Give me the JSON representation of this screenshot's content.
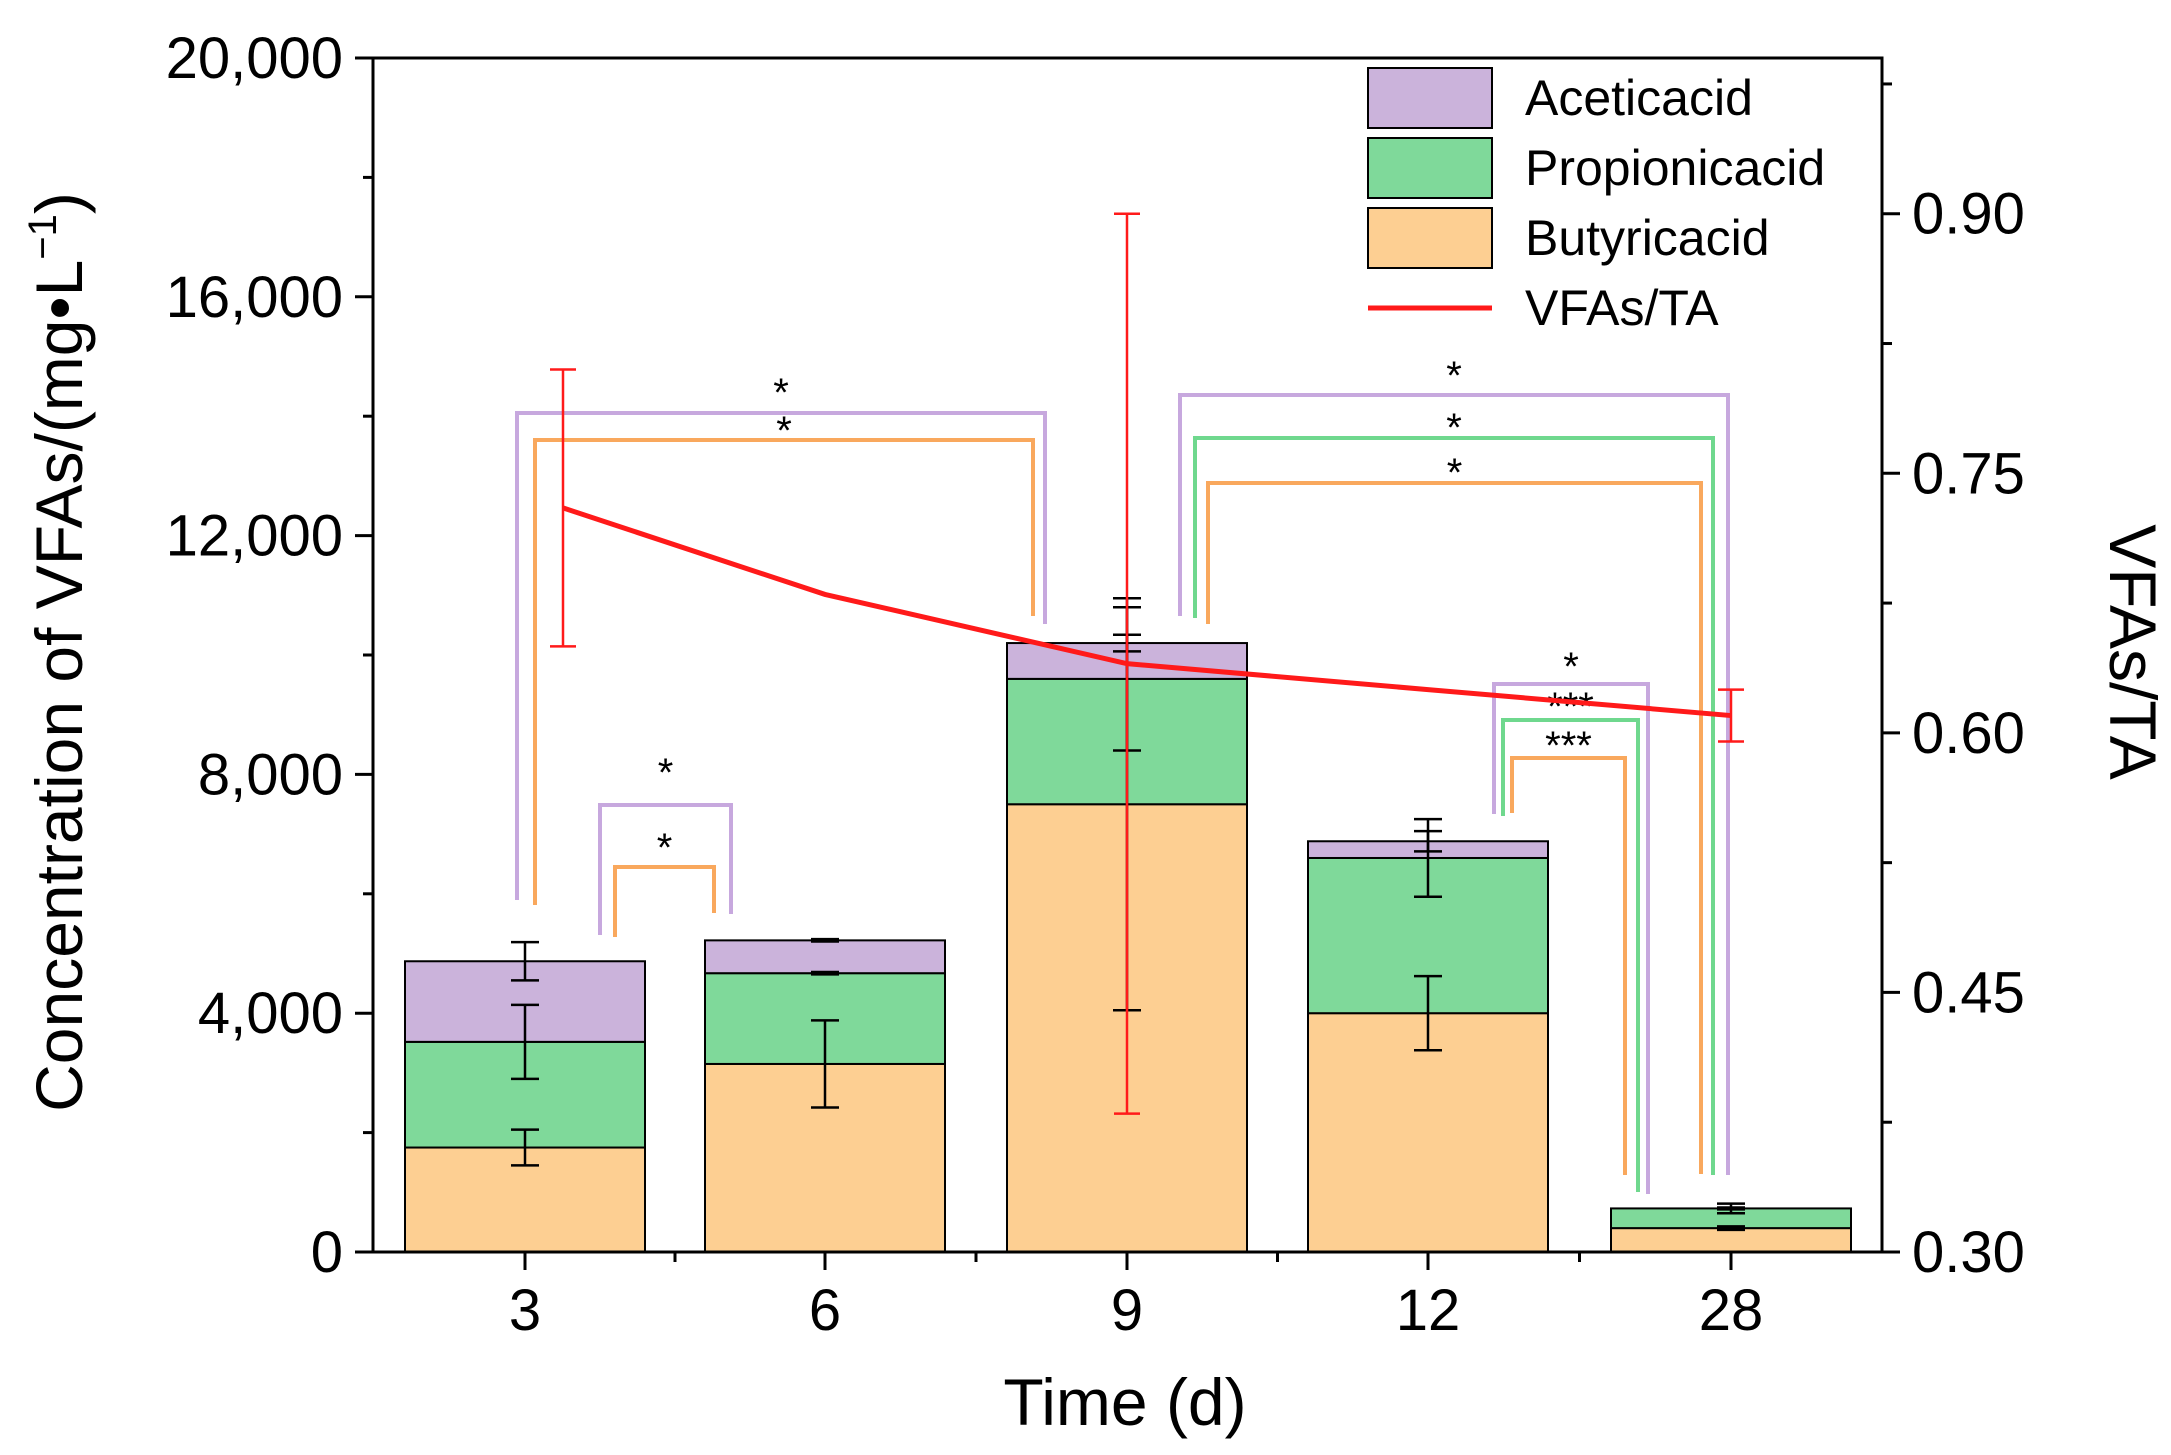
{
  "chart_data": {
    "type": "bar",
    "stacked": true,
    "categories": [
      "3",
      "6",
      "9",
      "12",
      "28"
    ],
    "xlabel": "Time (d)",
    "ylabel": "Concentration of VFAs/(mg•L",
    "ylabel_superscript": "−1",
    "ylabel_close": ")",
    "ylim": [
      0,
      20000
    ],
    "yticks": [
      0,
      4000,
      8000,
      12000,
      16000,
      20000
    ],
    "ytick_labels": [
      "0",
      "4,000",
      "8,000",
      "12,000",
      "16,000",
      "20,000"
    ],
    "y2label": "VFAs/TA",
    "y2lim": [
      0.3,
      0.99
    ],
    "y2ticks": [
      0.3,
      0.45,
      0.6,
      0.75,
      0.9
    ],
    "y2tick_labels": [
      "0.30",
      "0.45",
      "0.60",
      "0.75",
      "0.90"
    ],
    "series": [
      {
        "name": "Butyricacid",
        "color": "#fdcf92",
        "values": [
          1750,
          3150,
          7500,
          4000,
          400
        ],
        "errors": [
          300,
          730,
          3450,
          620,
          30
        ]
      },
      {
        "name": "Propionicacid",
        "color": "#7fd99a",
        "values": [
          1770,
          1520,
          2100,
          2600,
          330
        ],
        "errors": [
          620,
          20,
          1200,
          650,
          15
        ]
      },
      {
        "name": "Aceticacid",
        "color": "#cbb3db",
        "values": [
          1350,
          550,
          600,
          280,
          0
        ],
        "errors": [
          320,
          20,
          140,
          170,
          80
        ]
      }
    ],
    "line_series": {
      "name": "VFAs/TA",
      "color": "#ff1a1a",
      "axis": "right",
      "values": [
        0.73,
        0.68,
        0.64,
        0.625,
        0.61
      ],
      "errors": [
        0.08,
        0,
        0.26,
        0,
        0.015
      ]
    },
    "significance": [
      {
        "from": 0,
        "to": 2,
        "series": "Aceticacid",
        "label": "*"
      },
      {
        "from": 0,
        "to": 2,
        "series": "Butyricacid",
        "label": "*"
      },
      {
        "from": 0,
        "to": 1,
        "series": "Aceticacid",
        "label": "*"
      },
      {
        "from": 0,
        "to": 1,
        "series": "Butyricacid",
        "label": "*"
      },
      {
        "from": 2,
        "to": 4,
        "series": "Aceticacid",
        "label": "*"
      },
      {
        "from": 2,
        "to": 4,
        "series": "Propionicacid",
        "label": "*"
      },
      {
        "from": 2,
        "to": 4,
        "series": "Butyricacid",
        "label": "*"
      },
      {
        "from": 3,
        "to": 4,
        "series": "Aceticacid",
        "label": "*"
      },
      {
        "from": 3,
        "to": 4,
        "series": "Propionicacid",
        "label": "***"
      },
      {
        "from": 3,
        "to": 4,
        "series": "Butyricacid",
        "label": "***"
      }
    ],
    "legend_position": "top-right"
  }
}
